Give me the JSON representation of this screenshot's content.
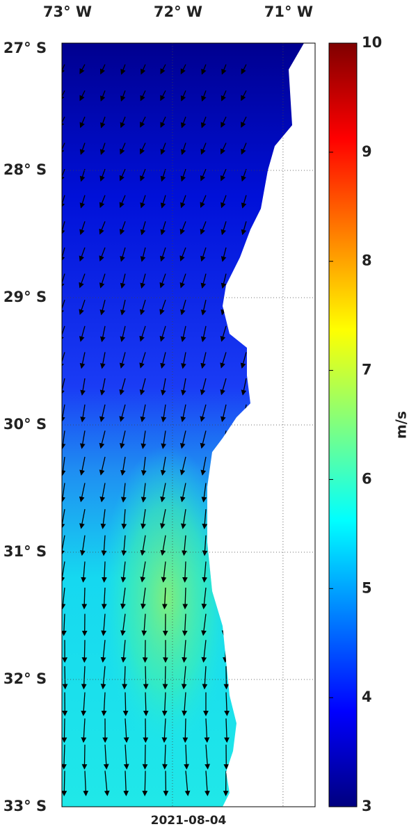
{
  "map": {
    "xlim": [
      -73,
      -70.71
    ],
    "ylim": [
      -33,
      -27
    ],
    "lon_ticks": [
      {
        "value": -73,
        "label": "73° W"
      },
      {
        "value": -72,
        "label": "72° W"
      },
      {
        "value": -71,
        "label": "71° W"
      }
    ],
    "lat_ticks": [
      {
        "value": -27,
        "label": "27° S"
      },
      {
        "value": -28,
        "label": "28° S"
      },
      {
        "value": -29,
        "label": "29° S"
      },
      {
        "value": -30,
        "label": "30° S"
      },
      {
        "value": -31,
        "label": "31° S"
      },
      {
        "value": -32,
        "label": "32° S"
      },
      {
        "value": -33,
        "label": "33° S"
      }
    ],
    "date": "2021-08-04"
  },
  "colorbar": {
    "lim": [
      3,
      10
    ],
    "ticks": [
      3,
      4,
      5,
      6,
      7,
      8,
      9,
      10
    ],
    "label": "m/s"
  }
}
